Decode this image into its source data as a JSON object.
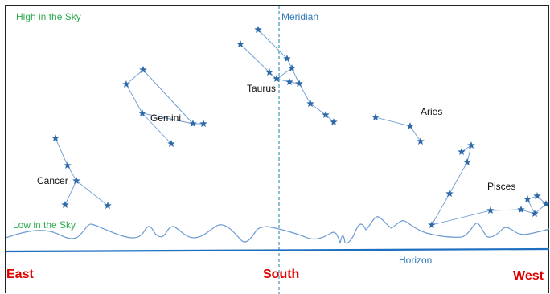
{
  "labels": {
    "high": "High in the Sky",
    "low": "Low in the Sky",
    "meridian": "Meridian",
    "horizon": "Horizon"
  },
  "directions": {
    "east": "East",
    "south": "South",
    "west": "West"
  },
  "constellations": {
    "taurus": "Taurus",
    "gemini": "Gemini",
    "aries": "Aries",
    "cancer": "Cancer",
    "pisces": "Pisces"
  },
  "colors": {
    "star": "#2f6aa8",
    "line": "#6c9bd2",
    "horizon": "#1f6fc0",
    "meridian": "#3d9ab8",
    "green": "#2eab4f",
    "red": "#e00000"
  }
}
